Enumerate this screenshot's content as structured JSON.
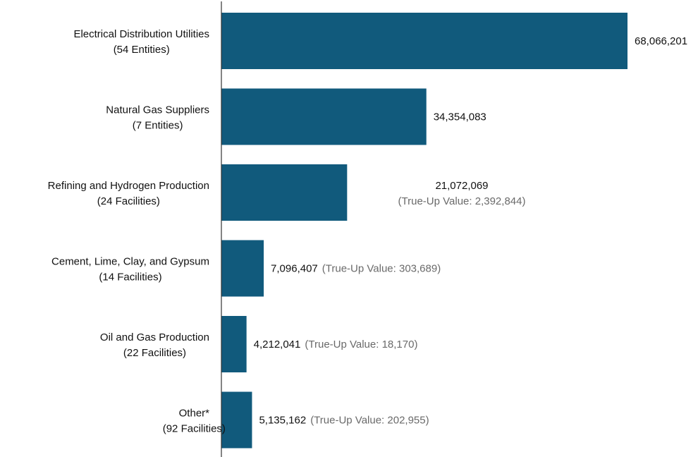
{
  "chart_data": {
    "type": "bar",
    "orientation": "horizontal",
    "categories": [
      "Electrical Distribution Utilities",
      "Natural Gas Suppliers",
      "Refining and Hydrogen Production",
      "Cement, Lime, Clay, and Gypsum",
      "Oil and Gas Production",
      "Other*"
    ],
    "category_sublabels": [
      "(54 Entities)",
      "(7 Entities)",
      "(24 Facilities)",
      "(14 Facilities)",
      "(22 Facilities)",
      "(92 Facilities)"
    ],
    "values": [
      68066201,
      34354083,
      21072069,
      7096407,
      4212041,
      5135162
    ],
    "value_labels": [
      "68,066,201",
      "34,354,083",
      "21,072,069",
      "7,096,407",
      "4,212,041",
      "5,135,162"
    ],
    "true_up_labels": [
      "",
      "",
      "(True-Up Value: 2,392,844)",
      "(True-Up Value: 303,689)",
      "(True-Up Value: 18,170)",
      "(True-Up Value: 202,955)"
    ],
    "xlim": [
      0,
      68066201
    ],
    "grid": false,
    "bar_color": "#115a7c",
    "axis_color": "#333333",
    "title": "",
    "xlabel": "",
    "ylabel": ""
  }
}
